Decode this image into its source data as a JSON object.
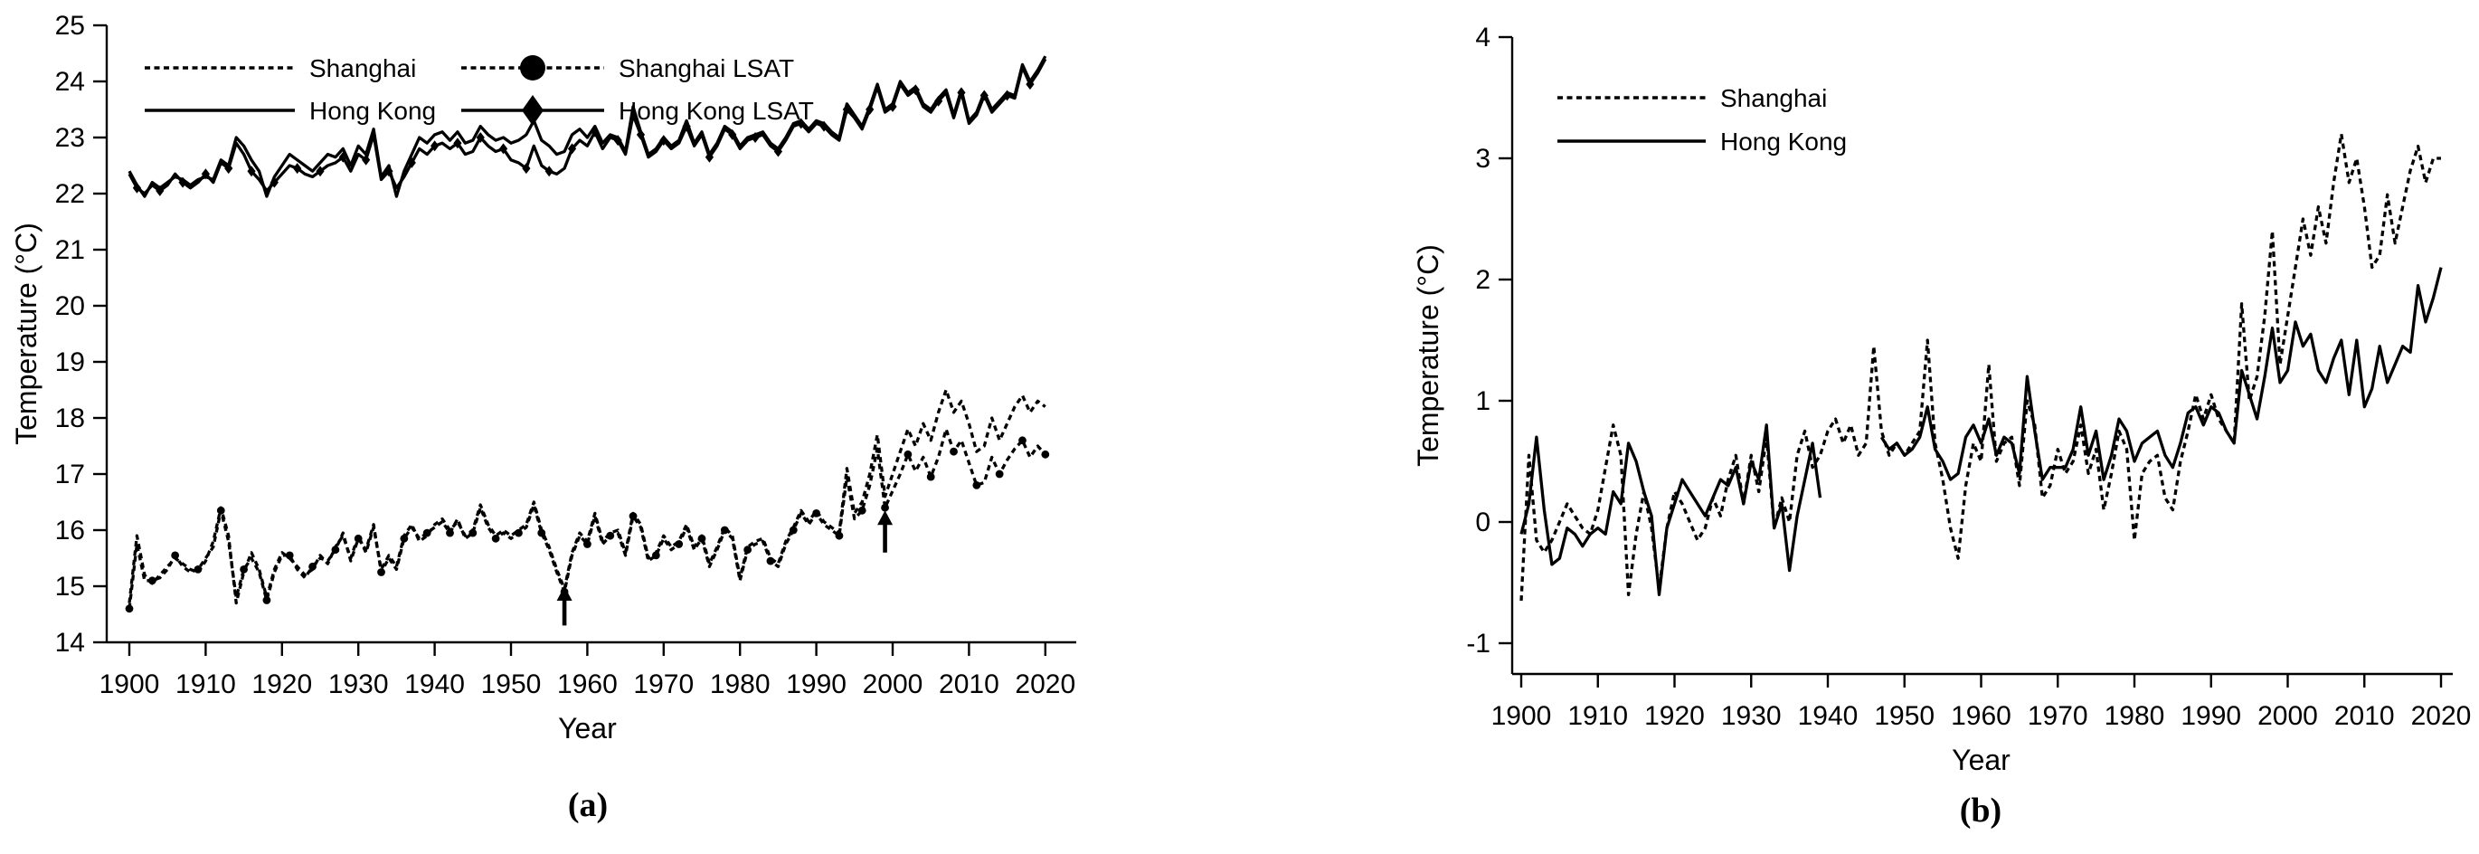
{
  "figure": {
    "background": "#ffffff",
    "line_color": "#000000",
    "panels": [
      {
        "caption": "(a)",
        "xlabel": "Year",
        "ylabel": "Temperature (°C)"
      },
      {
        "caption": "(b)",
        "xlabel": "Year",
        "ylabel": "Temperature (°C)"
      }
    ]
  },
  "chart_data": [
    {
      "type": "line",
      "panel": "a",
      "title": "",
      "xlabel": "Year",
      "ylabel": "Temperature (°C)",
      "xlim": [
        1897,
        2025
      ],
      "ylim": [
        14,
        25
      ],
      "xticks": [
        1900,
        1910,
        1920,
        1930,
        1940,
        1950,
        1960,
        1970,
        1980,
        1990,
        2000,
        2010,
        2020
      ],
      "yticks": [
        14,
        15,
        16,
        17,
        18,
        19,
        20,
        21,
        22,
        23,
        24,
        25
      ],
      "grid": false,
      "legend_position": "top-left",
      "legend_columns": 2,
      "x_start": 1900,
      "x_end": 2020,
      "x_step": 1,
      "series": [
        {
          "name": "Shanghai",
          "line": "dashed",
          "marker": "none",
          "values": [
            14.7,
            15.9,
            15.2,
            15.05,
            15.2,
            15.35,
            15.5,
            15.4,
            15.3,
            15.25,
            15.45,
            15.8,
            16.4,
            15.9,
            14.7,
            15.25,
            15.6,
            15.3,
            14.8,
            15.3,
            15.6,
            15.5,
            15.35,
            15.2,
            15.3,
            15.55,
            15.4,
            15.7,
            15.9,
            15.5,
            15.9,
            15.6,
            16.05,
            15.3,
            15.55,
            15.35,
            15.9,
            16.1,
            15.8,
            15.9,
            16.1,
            16.2,
            16.0,
            16.15,
            15.9,
            16.0,
            16.45,
            16.1,
            15.9,
            16.0,
            15.9,
            16.0,
            16.1,
            16.5,
            16.0,
            15.7,
            15.3,
            14.95,
            15.6,
            15.95,
            15.8,
            16.3,
            15.8,
            15.95,
            16.0,
            15.6,
            16.3,
            16.1,
            15.5,
            15.6,
            15.9,
            15.7,
            15.8,
            16.1,
            15.7,
            15.9,
            15.4,
            15.7,
            16.05,
            15.9,
            15.15,
            15.7,
            15.8,
            15.85,
            15.5,
            15.4,
            15.8,
            16.05,
            16.35,
            16.15,
            16.35,
            16.15,
            16.05,
            15.95,
            17.1,
            16.3,
            16.5,
            17.0,
            17.7,
            16.6,
            17.0,
            17.4,
            17.8,
            17.5,
            17.9,
            17.6,
            18.1,
            18.5,
            18.1,
            18.3,
            17.9,
            17.4,
            17.5,
            18.0,
            17.6,
            17.9,
            18.2,
            18.4,
            18.1,
            18.3,
            18.2
          ]
        },
        {
          "name": "Hong Kong",
          "line": "solid",
          "marker": "none",
          "values": [
            22.4,
            22.15,
            21.95,
            22.2,
            22.1,
            22.2,
            22.3,
            22.25,
            22.15,
            22.25,
            22.3,
            22.25,
            22.6,
            22.5,
            23.0,
            22.85,
            22.6,
            22.4,
            21.95,
            22.3,
            22.5,
            22.7,
            22.6,
            22.5,
            22.4,
            22.55,
            22.7,
            22.65,
            22.8,
            22.5,
            22.85,
            22.7,
            23.15,
            22.3,
            22.5,
            21.95,
            22.4,
            22.7,
            23.0,
            22.9,
            23.05,
            23.1,
            22.95,
            23.1,
            22.9,
            22.95,
            23.2,
            23.05,
            22.95,
            23.0,
            22.9,
            22.95,
            23.05,
            23.3,
            22.95,
            22.85,
            22.7,
            22.75,
            23.05,
            23.15,
            23.0,
            23.2,
            22.9,
            23.05,
            23.0,
            22.75,
            23.55,
            23.1,
            22.7,
            22.8,
            23.0,
            22.85,
            22.95,
            23.3,
            22.9,
            23.1,
            22.7,
            22.9,
            23.2,
            23.1,
            22.85,
            23.0,
            23.05,
            23.1,
            22.9,
            22.8,
            23.0,
            23.25,
            23.3,
            23.15,
            23.3,
            23.25,
            23.1,
            23.0,
            23.6,
            23.4,
            23.2,
            23.55,
            23.95,
            23.5,
            23.6,
            24.0,
            23.8,
            23.9,
            23.6,
            23.5,
            23.7,
            23.85,
            23.4,
            23.85,
            23.3,
            23.45,
            23.8,
            23.5,
            23.65,
            23.8,
            23.75,
            24.3,
            24.0,
            24.2,
            24.45
          ]
        },
        {
          "name": "Shanghai LSAT",
          "line": "dashed",
          "marker": "circle",
          "values": [
            14.6,
            15.75,
            15.1,
            15.1,
            15.15,
            15.3,
            15.55,
            15.35,
            15.25,
            15.3,
            15.5,
            15.7,
            16.35,
            15.8,
            14.8,
            15.3,
            15.5,
            15.25,
            14.75,
            15.25,
            15.55,
            15.55,
            15.3,
            15.15,
            15.35,
            15.5,
            15.45,
            15.65,
            15.95,
            15.45,
            15.85,
            15.65,
            16.1,
            15.25,
            15.5,
            15.3,
            15.85,
            16.05,
            15.85,
            15.95,
            16.05,
            16.15,
            15.95,
            16.2,
            15.85,
            15.95,
            16.4,
            16.05,
            15.85,
            15.95,
            15.85,
            15.95,
            16.05,
            16.45,
            15.95,
            15.65,
            15.25,
            14.9,
            15.55,
            15.9,
            15.75,
            16.25,
            15.75,
            15.9,
            15.95,
            15.55,
            16.25,
            16.05,
            15.45,
            15.55,
            15.85,
            15.65,
            15.75,
            16.05,
            15.65,
            15.85,
            15.35,
            15.65,
            16.0,
            15.85,
            15.1,
            15.65,
            15.75,
            15.8,
            15.45,
            15.35,
            15.75,
            16.0,
            16.3,
            16.1,
            16.3,
            16.1,
            16.0,
            15.9,
            16.95,
            16.2,
            16.35,
            16.8,
            17.45,
            16.4,
            16.7,
            17.0,
            17.35,
            17.05,
            17.3,
            16.95,
            17.3,
            17.8,
            17.4,
            17.6,
            17.2,
            16.8,
            16.85,
            17.3,
            17.0,
            17.25,
            17.45,
            17.6,
            17.3,
            17.5,
            17.35
          ]
        },
        {
          "name": "Hong Kong LSAT",
          "line": "solid",
          "marker": "diamond",
          "values": [
            22.35,
            22.1,
            22.0,
            22.15,
            22.05,
            22.15,
            22.35,
            22.2,
            22.1,
            22.2,
            22.35,
            22.2,
            22.55,
            22.45,
            22.9,
            22.7,
            22.4,
            22.25,
            22.05,
            22.2,
            22.35,
            22.5,
            22.45,
            22.35,
            22.3,
            22.4,
            22.5,
            22.55,
            22.65,
            22.4,
            22.7,
            22.6,
            23.05,
            22.25,
            22.4,
            22.1,
            22.3,
            22.55,
            22.8,
            22.7,
            22.85,
            22.9,
            22.8,
            22.9,
            22.7,
            22.75,
            23.0,
            22.85,
            22.75,
            22.8,
            22.6,
            22.55,
            22.45,
            22.85,
            22.5,
            22.4,
            22.35,
            22.45,
            22.8,
            22.95,
            22.85,
            23.1,
            22.8,
            23.0,
            22.95,
            22.7,
            23.4,
            23.05,
            22.65,
            22.75,
            22.95,
            22.8,
            22.9,
            23.2,
            22.85,
            23.05,
            22.65,
            22.85,
            23.15,
            23.05,
            22.8,
            22.95,
            23.0,
            23.05,
            22.85,
            22.75,
            22.95,
            23.2,
            23.25,
            23.1,
            23.25,
            23.2,
            23.05,
            22.95,
            23.5,
            23.35,
            23.15,
            23.5,
            23.9,
            23.45,
            23.55,
            23.95,
            23.75,
            23.85,
            23.55,
            23.45,
            23.65,
            23.8,
            23.35,
            23.8,
            23.25,
            23.4,
            23.75,
            23.45,
            23.6,
            23.75,
            23.7,
            24.25,
            23.95,
            24.15,
            24.4
          ]
        }
      ],
      "annotations": [
        {
          "type": "arrow-up",
          "x": 1957,
          "y_base": 14.3,
          "y_tip": 15.0
        },
        {
          "type": "arrow-up",
          "x": 1999,
          "y_base": 15.6,
          "y_tip": 16.35
        }
      ]
    },
    {
      "type": "line",
      "panel": "b",
      "title": "",
      "xlabel": "Year",
      "ylabel": "Temperature (°C)",
      "xlim": [
        1897,
        2025
      ],
      "ylim": [
        -1,
        4
      ],
      "xticks": [
        1900,
        1910,
        1920,
        1930,
        1940,
        1950,
        1960,
        1970,
        1980,
        1990,
        2000,
        2010,
        2020
      ],
      "yticks": [
        -1,
        0,
        1,
        2,
        3,
        4
      ],
      "grid": false,
      "legend_position": "top-left",
      "legend_columns": 1,
      "x_start": 1900,
      "x_end": 2020,
      "x_step": 1,
      "series": [
        {
          "name": "Shanghai",
          "line": "dashed",
          "marker": "none",
          "values": [
            -0.65,
            0.55,
            -0.15,
            -0.25,
            -0.15,
            0.0,
            0.15,
            0.05,
            -0.05,
            -0.1,
            0.1,
            0.45,
            0.8,
            0.55,
            -0.6,
            -0.1,
            0.25,
            -0.05,
            -0.55,
            -0.05,
            0.25,
            0.15,
            0.0,
            -0.15,
            -0.05,
            0.2,
            0.05,
            0.35,
            0.55,
            0.15,
            0.55,
            0.25,
            0.7,
            -0.05,
            0.2,
            0.0,
            0.55,
            0.75,
            0.45,
            0.55,
            0.75,
            0.85,
            0.65,
            0.8,
            0.55,
            0.65,
            1.45,
            0.75,
            0.55,
            0.65,
            0.55,
            0.65,
            0.75,
            1.5,
            0.65,
            0.35,
            -0.05,
            -0.3,
            0.3,
            0.65,
            0.5,
            1.3,
            0.5,
            0.65,
            0.7,
            0.3,
            1.0,
            0.8,
            0.2,
            0.3,
            0.6,
            0.4,
            0.5,
            0.8,
            0.4,
            0.6,
            0.1,
            0.4,
            0.75,
            0.6,
            -0.15,
            0.4,
            0.5,
            0.55,
            0.2,
            0.1,
            0.5,
            0.75,
            1.05,
            0.85,
            1.05,
            0.85,
            0.75,
            0.65,
            1.8,
            1.0,
            1.2,
            1.7,
            2.4,
            1.3,
            1.7,
            2.1,
            2.5,
            2.2,
            2.6,
            2.3,
            2.8,
            3.2,
            2.8,
            3.0,
            2.6,
            2.1,
            2.2,
            2.7,
            2.3,
            2.6,
            2.9,
            3.1,
            2.8,
            3.0,
            3.0
          ]
        },
        {
          "name": "Hong Kong",
          "line": "solid",
          "marker": "none",
          "gap_years": [
            1940,
            1946
          ],
          "values": [
            -0.1,
            0.15,
            0.7,
            0.1,
            -0.35,
            -0.3,
            -0.05,
            -0.1,
            -0.2,
            -0.1,
            -0.05,
            -0.1,
            0.25,
            0.15,
            0.65,
            0.5,
            0.25,
            0.05,
            -0.6,
            -0.05,
            0.15,
            0.35,
            0.25,
            0.15,
            0.05,
            0.2,
            0.35,
            0.3,
            0.45,
            0.15,
            0.5,
            0.35,
            0.8,
            -0.05,
            0.15,
            -0.4,
            0.05,
            0.35,
            0.65,
            0.2,
            null,
            null,
            null,
            null,
            null,
            null,
            null,
            0.7,
            0.6,
            0.65,
            0.55,
            0.6,
            0.7,
            0.95,
            0.6,
            0.5,
            0.35,
            0.4,
            0.7,
            0.8,
            0.65,
            0.85,
            0.55,
            0.7,
            0.65,
            0.4,
            1.2,
            0.75,
            0.35,
            0.45,
            0.45,
            0.45,
            0.6,
            0.95,
            0.55,
            0.75,
            0.35,
            0.55,
            0.85,
            0.75,
            0.5,
            0.65,
            0.7,
            0.75,
            0.55,
            0.45,
            0.65,
            0.9,
            0.95,
            0.8,
            0.95,
            0.9,
            0.75,
            0.65,
            1.25,
            1.05,
            0.85,
            1.2,
            1.6,
            1.15,
            1.25,
            1.65,
            1.45,
            1.55,
            1.25,
            1.15,
            1.35,
            1.5,
            1.05,
            1.5,
            0.95,
            1.1,
            1.45,
            1.15,
            1.3,
            1.45,
            1.4,
            1.95,
            1.65,
            1.85,
            2.1
          ]
        }
      ],
      "annotations": []
    }
  ]
}
